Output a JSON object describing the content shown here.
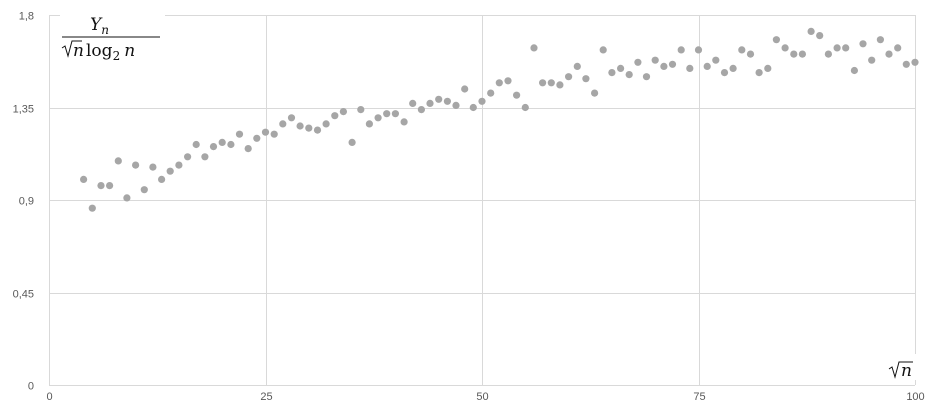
{
  "chart_data": {
    "type": "scatter",
    "title": "",
    "ylabel": {
      "numerator_symbol": "Y",
      "numerator_subscript": "n",
      "denominator_sqrt_arg": "n",
      "denominator_log": "log",
      "denominator_log_base": "2",
      "denominator_log_arg": "n"
    },
    "xlabel": {
      "sqrt_arg": "n"
    },
    "xlim": [
      0,
      100
    ],
    "ylim": [
      0,
      1.8
    ],
    "x_ticks": [
      0,
      25,
      50,
      75,
      100
    ],
    "x_tick_labels": [
      "0",
      "25",
      "50",
      "75",
      "100"
    ],
    "y_ticks": [
      0,
      0.45,
      0.9,
      1.35,
      1.8
    ],
    "y_tick_labels": [
      "0",
      "0,45",
      "0,9",
      "1,35",
      "1,8"
    ],
    "grid": true,
    "marker_color": "#a6a6a6",
    "grid_color": "#d9d9d9",
    "series": [
      {
        "points": [
          [
            4,
            1.0
          ],
          [
            5,
            0.86
          ],
          [
            6,
            0.97
          ],
          [
            7,
            0.97
          ],
          [
            8,
            1.09
          ],
          [
            9,
            0.91
          ],
          [
            10,
            1.07
          ],
          [
            11,
            0.95
          ],
          [
            12,
            1.06
          ],
          [
            13,
            1.0
          ],
          [
            14,
            1.04
          ],
          [
            15,
            1.07
          ],
          [
            16,
            1.11
          ],
          [
            17,
            1.17
          ],
          [
            18,
            1.11
          ],
          [
            19,
            1.16
          ],
          [
            20,
            1.18
          ],
          [
            21,
            1.17
          ],
          [
            22,
            1.22
          ],
          [
            23,
            1.15
          ],
          [
            24,
            1.2
          ],
          [
            25,
            1.23
          ],
          [
            26,
            1.22
          ],
          [
            27,
            1.27
          ],
          [
            28,
            1.3
          ],
          [
            29,
            1.26
          ],
          [
            30,
            1.25
          ],
          [
            31,
            1.24
          ],
          [
            32,
            1.27
          ],
          [
            33,
            1.31
          ],
          [
            34,
            1.33
          ],
          [
            35,
            1.18
          ],
          [
            36,
            1.34
          ],
          [
            37,
            1.27
          ],
          [
            38,
            1.3
          ],
          [
            39,
            1.32
          ],
          [
            40,
            1.32
          ],
          [
            41,
            1.28
          ],
          [
            42,
            1.37
          ],
          [
            43,
            1.34
          ],
          [
            44,
            1.37
          ],
          [
            45,
            1.39
          ],
          [
            46,
            1.38
          ],
          [
            47,
            1.36
          ],
          [
            48,
            1.44
          ],
          [
            49,
            1.35
          ],
          [
            50,
            1.38
          ],
          [
            51,
            1.42
          ],
          [
            52,
            1.47
          ],
          [
            53,
            1.48
          ],
          [
            54,
            1.41
          ],
          [
            55,
            1.35
          ],
          [
            56,
            1.64
          ],
          [
            57,
            1.47
          ],
          [
            58,
            1.47
          ],
          [
            59,
            1.46
          ],
          [
            60,
            1.5
          ],
          [
            61,
            1.55
          ],
          [
            62,
            1.49
          ],
          [
            63,
            1.42
          ],
          [
            64,
            1.63
          ],
          [
            65,
            1.52
          ],
          [
            66,
            1.54
          ],
          [
            67,
            1.51
          ],
          [
            68,
            1.57
          ],
          [
            69,
            1.5
          ],
          [
            70,
            1.58
          ],
          [
            71,
            1.55
          ],
          [
            72,
            1.56
          ],
          [
            73,
            1.63
          ],
          [
            74,
            1.54
          ],
          [
            75,
            1.63
          ],
          [
            76,
            1.55
          ],
          [
            77,
            1.58
          ],
          [
            78,
            1.52
          ],
          [
            79,
            1.54
          ],
          [
            80,
            1.63
          ],
          [
            81,
            1.61
          ],
          [
            82,
            1.52
          ],
          [
            83,
            1.54
          ],
          [
            84,
            1.68
          ],
          [
            85,
            1.64
          ],
          [
            86,
            1.61
          ],
          [
            87,
            1.61
          ],
          [
            88,
            1.72
          ],
          [
            89,
            1.7
          ],
          [
            90,
            1.61
          ],
          [
            91,
            1.64
          ],
          [
            92,
            1.64
          ],
          [
            93,
            1.53
          ],
          [
            94,
            1.66
          ],
          [
            95,
            1.58
          ],
          [
            96,
            1.68
          ],
          [
            97,
            1.61
          ],
          [
            98,
            1.64
          ],
          [
            99,
            1.56
          ],
          [
            100,
            1.57
          ]
        ]
      }
    ]
  }
}
